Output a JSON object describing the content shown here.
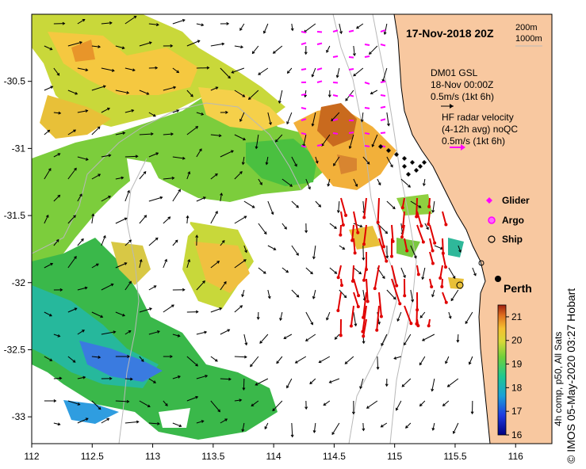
{
  "title": "17-Nov-2018 20Z",
  "depth_contours": [
    "200m",
    "1000m"
  ],
  "axes": {
    "x_ticks": [
      "112",
      "112.5",
      "113",
      "113.5",
      "114",
      "114.5",
      "115",
      "115.5",
      "116"
    ],
    "y_ticks": [
      "-30.5",
      "-31",
      "-31.5",
      "-32",
      "-32.5",
      "-33"
    ],
    "xlim": [
      112,
      116.3
    ],
    "ylim": [
      -33.2,
      -30
    ]
  },
  "mooring": {
    "name": "DM01 GSL",
    "time": "18-Nov 00:00Z",
    "scale": "0.5m/s (1kt 6h)"
  },
  "hf_radar": {
    "label": "HF radar velocity",
    "detail": "(4-12h avg) noQC",
    "scale": "0.5m/s (1kt 6h)"
  },
  "legend": {
    "glider": "Glider",
    "argo": "Argo",
    "ship": "Ship"
  },
  "city": "Perth",
  "colorbar": {
    "label": "4h comp, p50, All Sats",
    "ticks": [
      "16",
      "17",
      "18",
      "19",
      "20",
      "21"
    ],
    "range": [
      16,
      21.5
    ]
  },
  "credit": "© IMOS 05-May-2020 03:27 Hobart",
  "colors": {
    "land": "#f8c8a0",
    "radar_arrow": "#e00000",
    "glider": "#ff00ff",
    "argo": "#ff00ff",
    "arrow": "#000000"
  }
}
